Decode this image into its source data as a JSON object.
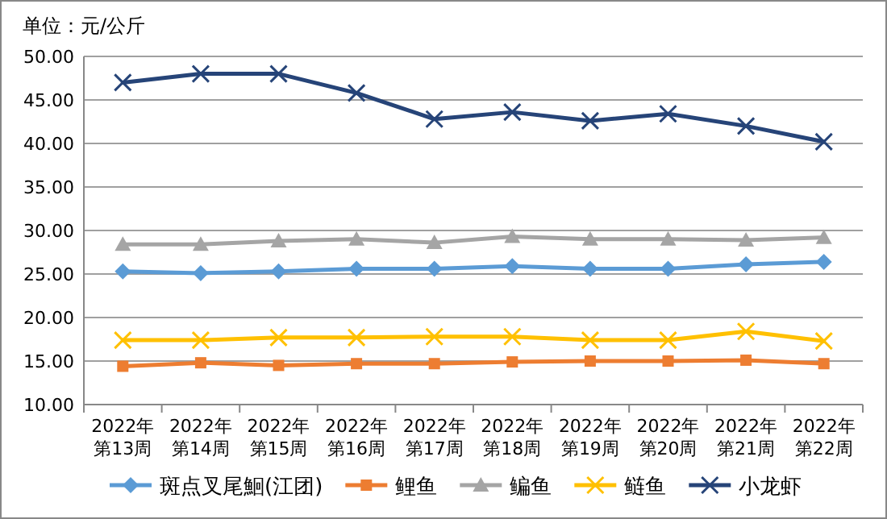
{
  "chart_data": {
    "type": "line",
    "ylabel": "单位：元/公斤",
    "categories": [
      "2022年第13周",
      "2022年第14周",
      "2022年第15周",
      "2022年第16周",
      "2022年第17周",
      "2022年第18周",
      "2022年第19周",
      "2022年第20周",
      "2022年第21周",
      "2022年第22周"
    ],
    "series": [
      {
        "name": "斑点叉尾鮰(江团)",
        "color": "#5b9bd5",
        "marker": "diamond",
        "values": [
          25.3,
          25.1,
          25.3,
          25.6,
          25.6,
          25.9,
          25.6,
          25.6,
          26.1,
          26.4
        ]
      },
      {
        "name": "鲤鱼",
        "color": "#ed7d31",
        "marker": "square",
        "values": [
          14.4,
          14.8,
          14.5,
          14.7,
          14.7,
          14.9,
          15.0,
          15.0,
          15.1,
          14.7
        ]
      },
      {
        "name": "鳊鱼",
        "color": "#a5a5a5",
        "marker": "triangle",
        "values": [
          28.4,
          28.4,
          28.8,
          29.0,
          28.6,
          29.3,
          29.0,
          29.0,
          28.9,
          29.2
        ]
      },
      {
        "name": "鲢鱼",
        "color": "#ffc000",
        "marker": "cross",
        "values": [
          17.4,
          17.4,
          17.7,
          17.7,
          17.8,
          17.8,
          17.4,
          17.4,
          18.4,
          17.3
        ]
      },
      {
        "name": "小龙虾",
        "color": "#264478",
        "marker": "cross",
        "values": [
          47.0,
          48.0,
          48.0,
          45.8,
          42.8,
          43.6,
          42.6,
          43.4,
          42.0,
          40.2
        ]
      }
    ],
    "ylim": [
      10,
      50
    ],
    "yticks": [
      {
        "value": 10,
        "label": "10.00"
      },
      {
        "value": 15,
        "label": "15.00"
      },
      {
        "value": 20,
        "label": "20.00"
      },
      {
        "value": 25,
        "label": "25.00"
      },
      {
        "value": 30,
        "label": "30.00"
      },
      {
        "value": 35,
        "label": "35.00"
      },
      {
        "value": 40,
        "label": "40.00"
      },
      {
        "value": 45,
        "label": "45.00"
      },
      {
        "value": 50,
        "label": "50.00"
      }
    ],
    "grid": "y",
    "legend": "bottom",
    "line_style": "solid"
  }
}
